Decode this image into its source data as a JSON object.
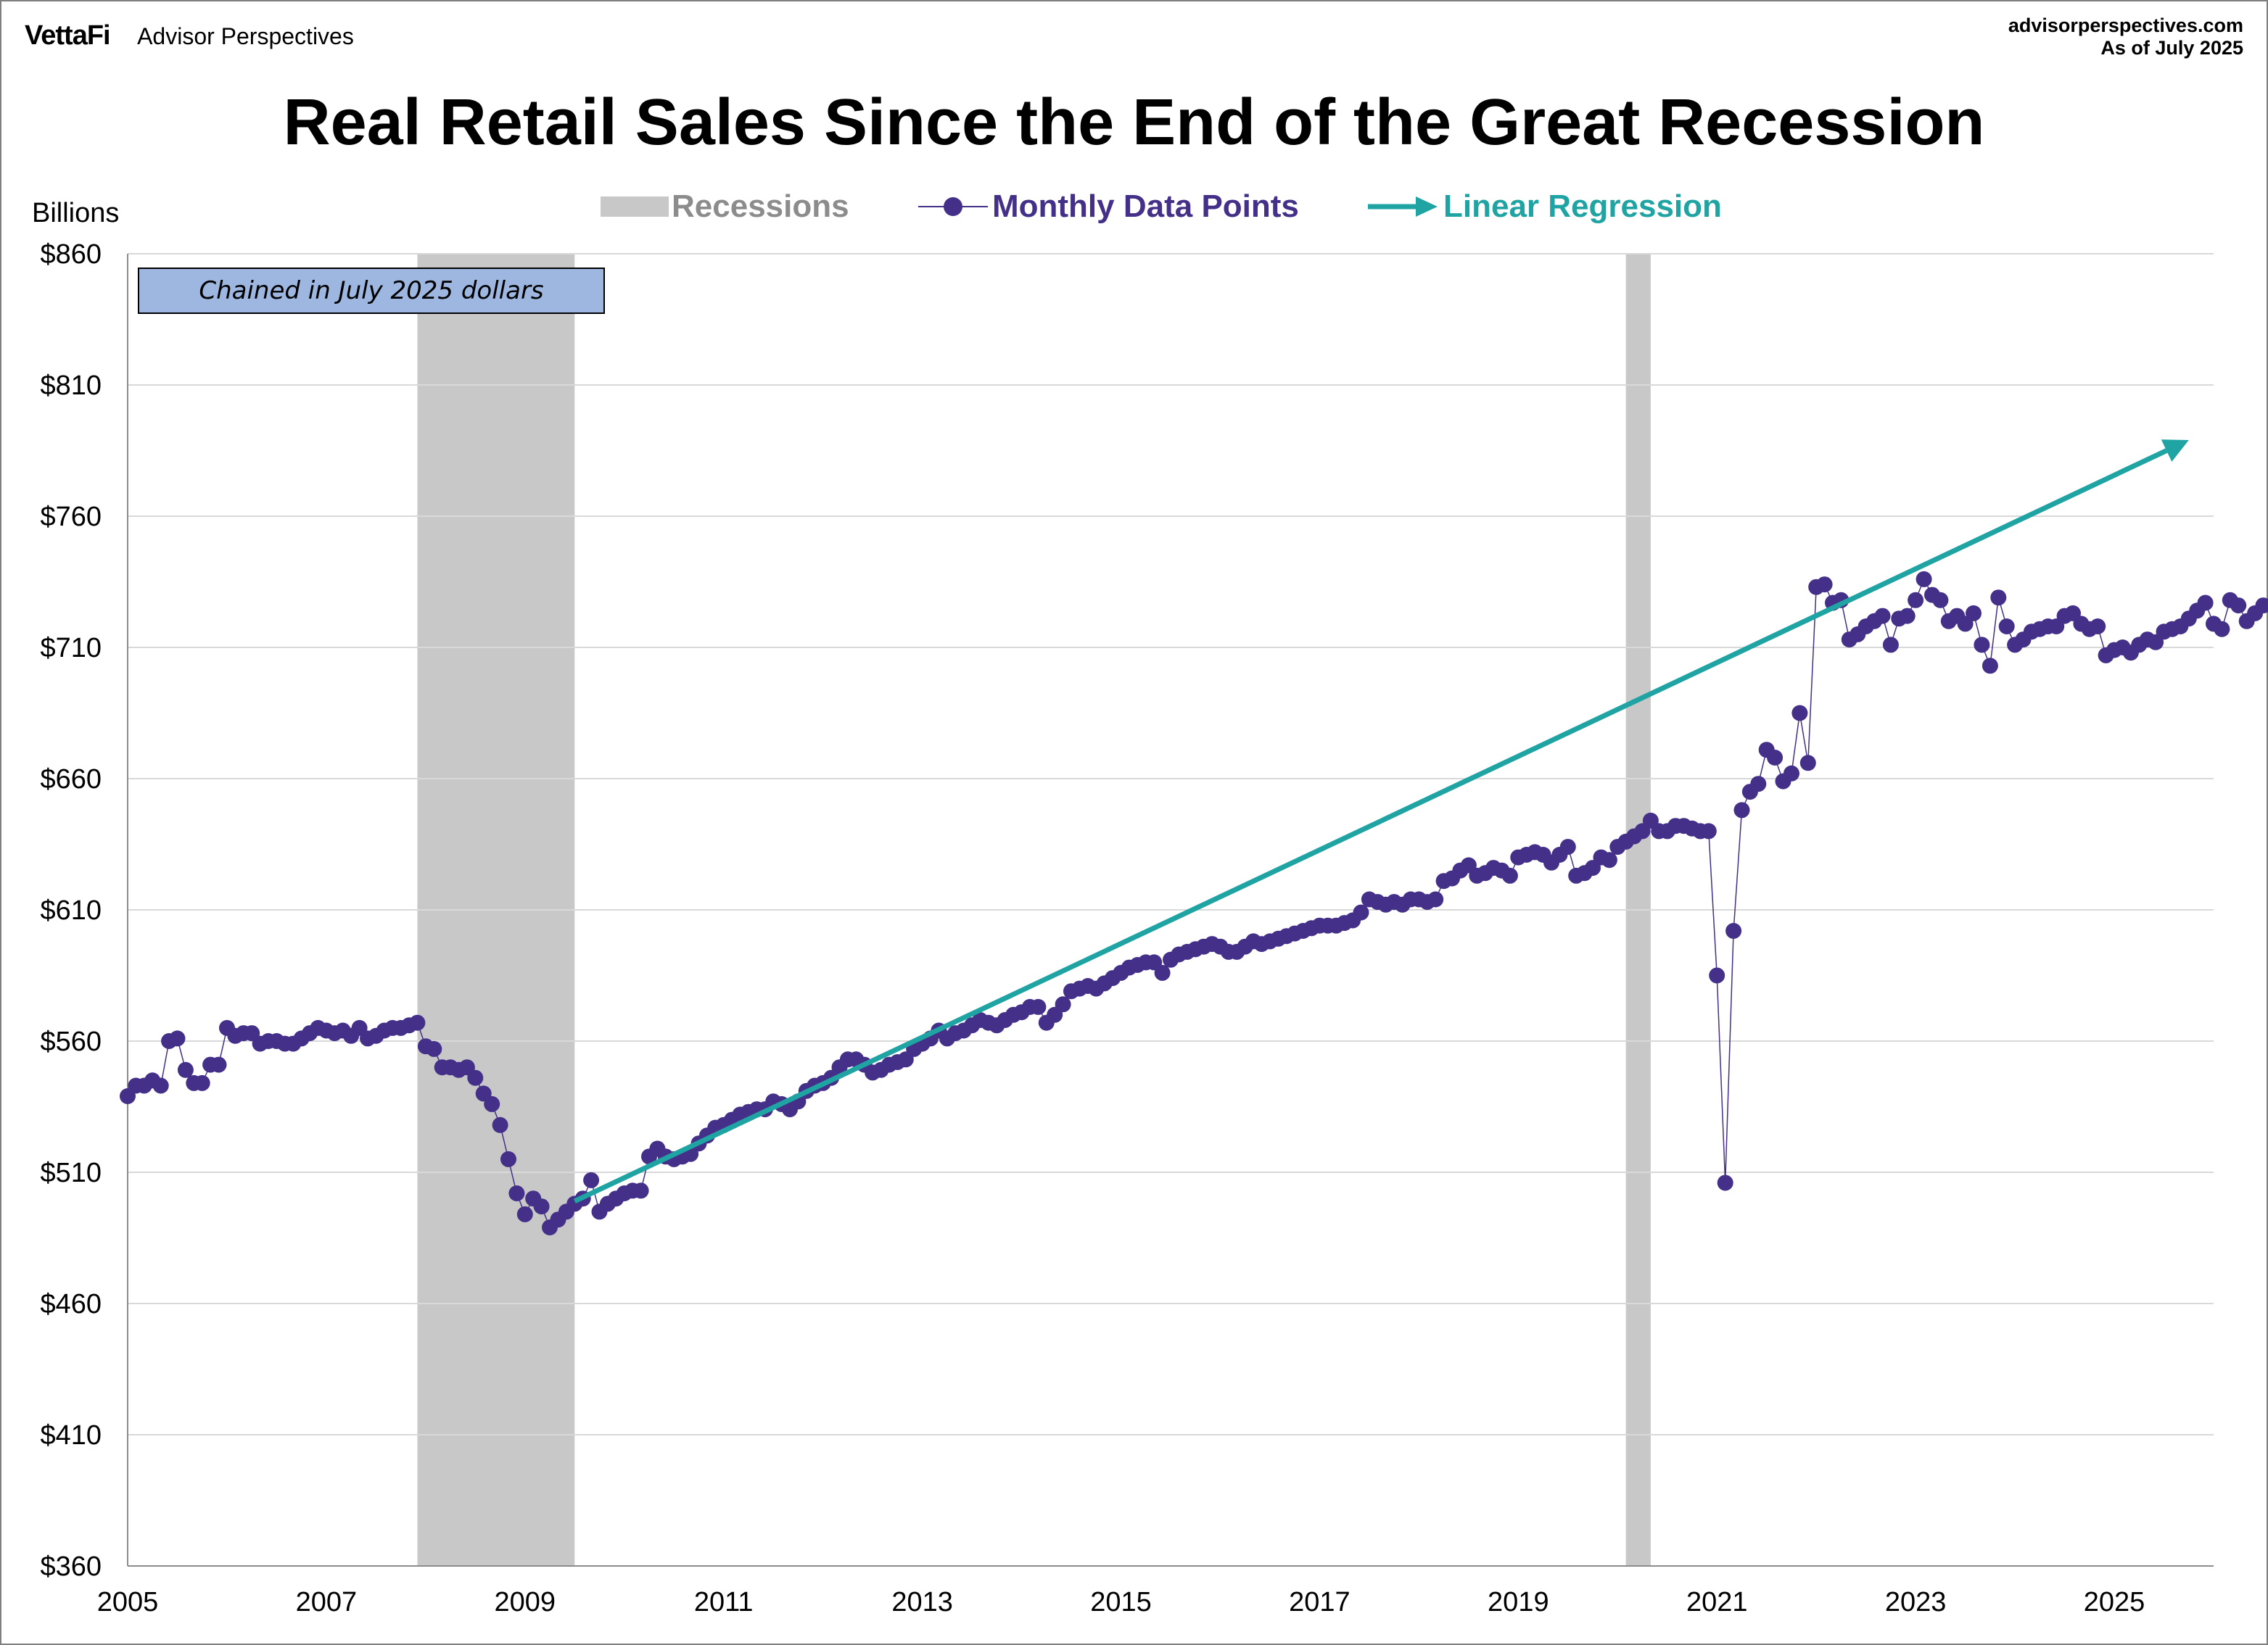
{
  "header": {
    "logo": "VettaFi",
    "publisher": "Advisor Perspectives",
    "site": "advisorperspectives.com",
    "as_of": "As of July 2025"
  },
  "note": "Chained in July 2025 dollars",
  "colors": {
    "recession": "#c8c8c8",
    "data": "#443088",
    "regression": "#1fa3a3",
    "grid": "#d9d9d9",
    "note_bg": "#9db7e0"
  },
  "chart_data": {
    "type": "line",
    "title": "Real Retail Sales Since the End of the Great Recession",
    "ylabel": "Billions",
    "xlabel": "",
    "ylim": [
      360,
      860
    ],
    "xlim": [
      2005.0,
      2026.0
    ],
    "yticks": [
      360,
      410,
      460,
      510,
      560,
      610,
      660,
      710,
      760,
      810,
      860
    ],
    "ytick_labels": [
      "$360",
      "$410",
      "$460",
      "$510",
      "$560",
      "$610",
      "$660",
      "$710",
      "$760",
      "$810",
      "$860"
    ],
    "xticks": [
      2005,
      2007,
      2009,
      2011,
      2013,
      2015,
      2017,
      2019,
      2021,
      2023,
      2025
    ],
    "xtick_labels": [
      "2005",
      "2007",
      "2009",
      "2011",
      "2013",
      "2015",
      "2017",
      "2019",
      "2021",
      "2023",
      "2025"
    ],
    "grid": true,
    "legend": {
      "placement": "top-center",
      "entries": [
        "Recessions",
        "Monthly Data Points",
        "Linear Regression"
      ]
    },
    "recessions": [
      {
        "start": 2007.917,
        "end": 2009.5
      },
      {
        "start": 2020.083,
        "end": 2020.333
      }
    ],
    "series": [
      {
        "name": "Monthly Data Points",
        "start": 2005.0,
        "step_months": 1,
        "values": [
          539,
          543,
          543,
          545,
          543,
          560,
          561,
          549,
          544,
          544,
          551,
          551,
          565,
          562,
          563,
          563,
          559,
          560,
          560,
          559,
          559,
          561,
          563,
          565,
          564,
          563,
          564,
          562,
          565,
          561,
          562,
          564,
          565,
          565,
          566,
          567,
          558,
          557,
          550,
          550,
          549,
          550,
          546,
          540,
          536,
          528,
          515,
          502,
          494,
          500,
          497,
          489,
          492,
          495,
          498,
          500,
          507,
          495,
          498,
          500,
          502,
          503,
          503,
          516,
          519,
          516,
          515,
          516,
          517,
          521,
          524,
          527,
          528,
          530,
          532,
          533,
          534,
          534,
          537,
          536,
          534,
          537,
          541,
          543,
          544,
          546,
          550,
          553,
          553,
          551,
          548,
          549,
          551,
          552,
          553,
          557,
          559,
          561,
          564,
          561,
          563,
          564,
          566,
          568,
          567,
          566,
          568,
          570,
          571,
          573,
          573,
          567,
          570,
          574,
          579,
          580,
          581,
          580,
          582,
          584,
          586,
          588,
          589,
          590,
          590,
          586,
          591,
          593,
          594,
          595,
          596,
          597,
          596,
          594,
          594,
          596,
          598,
          597,
          598,
          599,
          600,
          601,
          602,
          603,
          604,
          604,
          604,
          605,
          606,
          609,
          614,
          613,
          612,
          613,
          612,
          614,
          614,
          613,
          614,
          621,
          622,
          625,
          627,
          623,
          624,
          626,
          625,
          623,
          630,
          631,
          632,
          631,
          628,
          631,
          634,
          623,
          624,
          626,
          630,
          629,
          634,
          636,
          638,
          640,
          644,
          640,
          640,
          642,
          642,
          641,
          640,
          640,
          585,
          506,
          602,
          648,
          655,
          658,
          671,
          668,
          659,
          662,
          685,
          666,
          733,
          734,
          727,
          728,
          713,
          715,
          718,
          720,
          722,
          711,
          721,
          722,
          728,
          736,
          730,
          728,
          720,
          722,
          719,
          723,
          711,
          703,
          729,
          718,
          711,
          713,
          716,
          717,
          718,
          718,
          722,
          723,
          719,
          717,
          718,
          707,
          709,
          710,
          708,
          711,
          713,
          712,
          716,
          717,
          718,
          721,
          724,
          727,
          719,
          717,
          728,
          726,
          720,
          723,
          726
        ]
      },
      {
        "name": "Linear Regression",
        "x": [
          2009.5,
          2025.75
        ],
        "y": [
          499,
          789
        ]
      }
    ]
  }
}
